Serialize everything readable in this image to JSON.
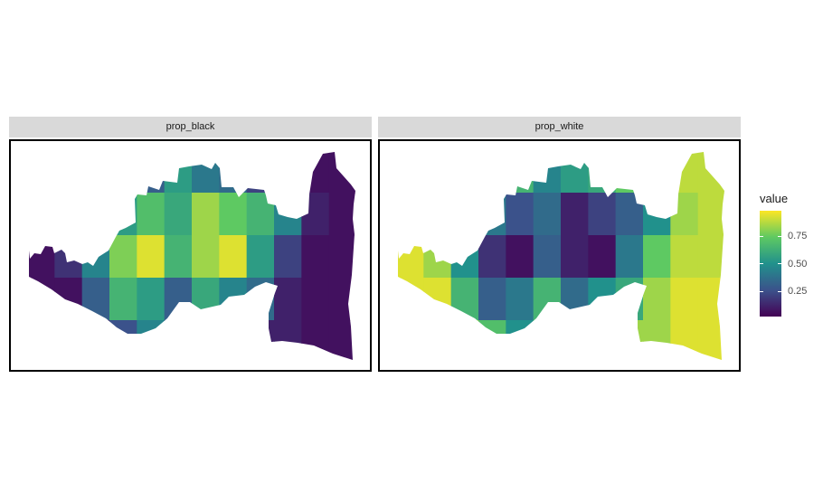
{
  "facets": [
    {
      "label": "prop_black",
      "map": [
        [
          0.05,
          0.05,
          0.1,
          0.15,
          0.3,
          0.55,
          0.4,
          0.35,
          0.2,
          0.1,
          0.05,
          0.05
        ],
        [
          0.05,
          0.1,
          0.25,
          0.55,
          0.7,
          0.6,
          0.85,
          0.75,
          0.65,
          0.45,
          0.1,
          0.05
        ],
        [
          0.05,
          0.15,
          0.45,
          0.8,
          0.95,
          0.65,
          0.85,
          0.95,
          0.55,
          0.2,
          0.05,
          0.05
        ],
        [
          0.05,
          0.05,
          0.3,
          0.65,
          0.55,
          0.3,
          0.6,
          0.45,
          0.35,
          0.1,
          0.05,
          0.05
        ],
        [
          0.05,
          0.05,
          0.1,
          0.25,
          0.45,
          0.2,
          0.15,
          0.1,
          0.1,
          0.1,
          0.05,
          0.05
        ]
      ]
    },
    {
      "label": "prop_white",
      "map": [
        [
          0.95,
          0.95,
          0.85,
          0.8,
          0.65,
          0.45,
          0.55,
          0.6,
          0.75,
          0.85,
          0.9,
          0.9
        ],
        [
          0.95,
          0.9,
          0.7,
          0.4,
          0.25,
          0.35,
          0.1,
          0.2,
          0.3,
          0.5,
          0.85,
          0.9
        ],
        [
          0.95,
          0.85,
          0.5,
          0.15,
          0.05,
          0.3,
          0.1,
          0.05,
          0.4,
          0.75,
          0.9,
          0.9
        ],
        [
          0.95,
          0.95,
          0.65,
          0.3,
          0.4,
          0.65,
          0.35,
          0.5,
          0.6,
          0.85,
          0.95,
          0.95
        ],
        [
          0.95,
          0.95,
          0.85,
          0.7,
          0.5,
          0.75,
          0.8,
          0.85,
          0.85,
          0.85,
          0.95,
          0.95
        ]
      ]
    }
  ],
  "legend": {
    "title": "value",
    "min": 0.02,
    "max": 0.98,
    "ticks": [
      {
        "value": 0.25,
        "label": "0.25"
      },
      {
        "value": 0.5,
        "label": "0.50"
      },
      {
        "value": 0.75,
        "label": "0.75"
      }
    ]
  },
  "colors": {
    "palette": "viridis",
    "stops": [
      "#440154",
      "#3b528b",
      "#21918c",
      "#5ec962",
      "#fde725"
    ]
  }
}
